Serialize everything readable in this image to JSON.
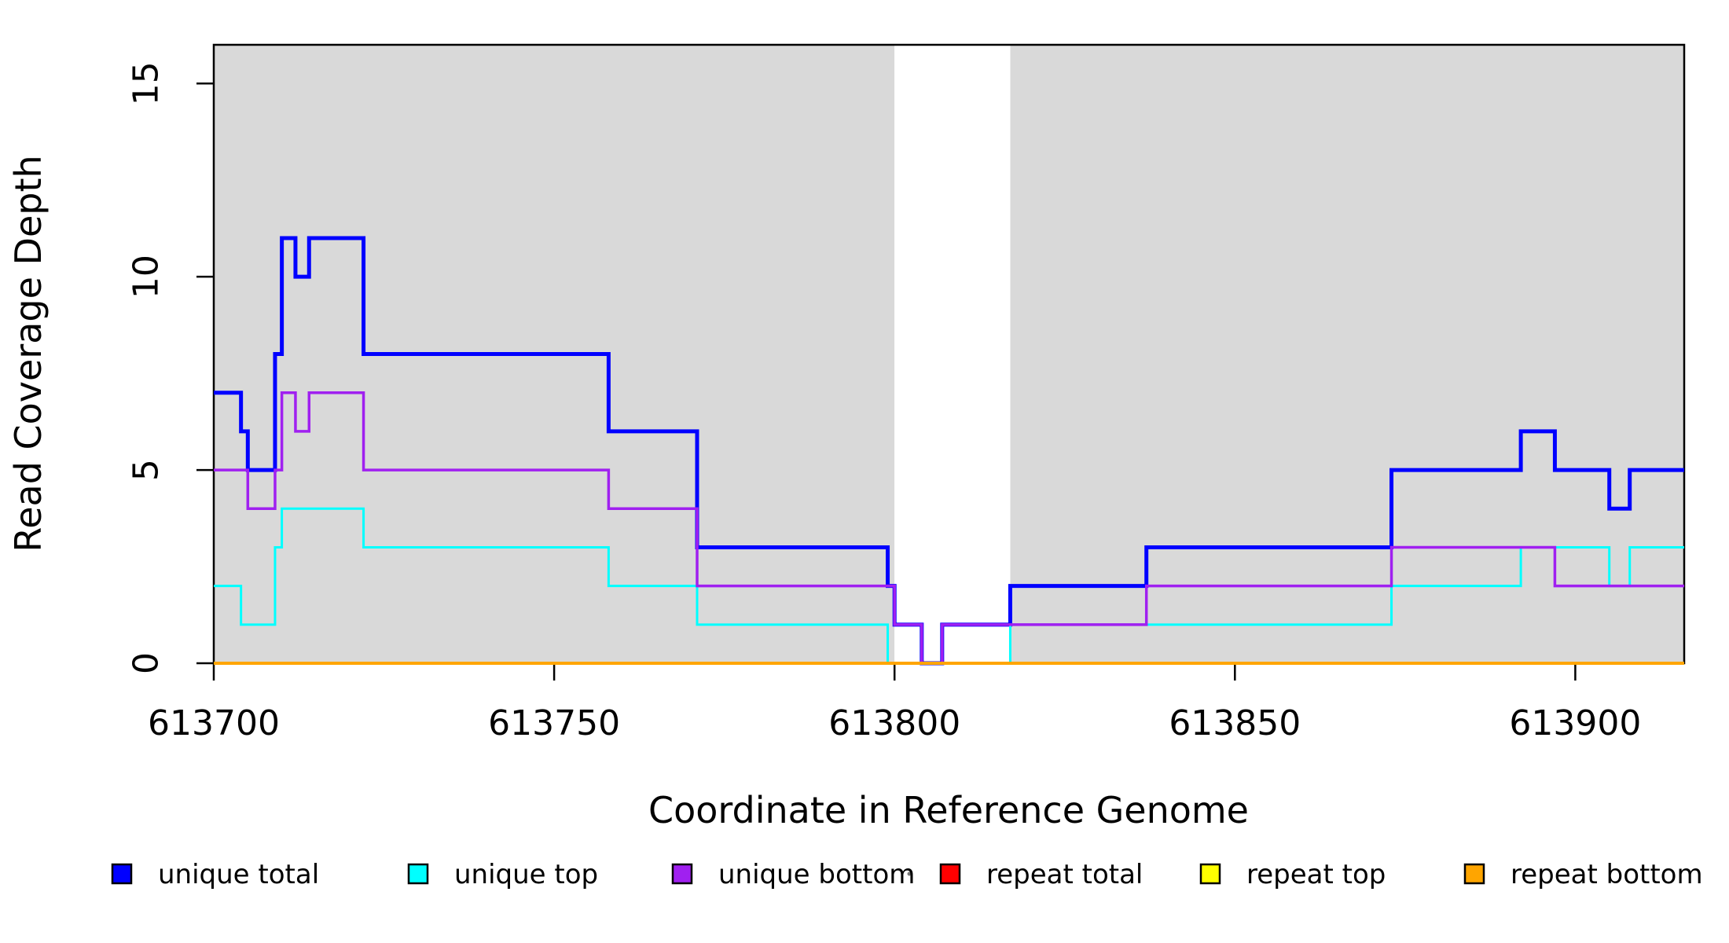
{
  "chart_data": {
    "type": "step-line",
    "title": "",
    "xlabel": "Coordinate in Reference Genome",
    "ylabel": "Read Coverage Depth",
    "xlim": [
      613700,
      613916
    ],
    "ylim": [
      0,
      16
    ],
    "x_ticks": [
      613700,
      613750,
      613800,
      613850,
      613900
    ],
    "x_tick_labels": [
      "613700",
      "613750",
      "613800",
      "613850",
      "613900"
    ],
    "y_ticks": [
      0,
      5,
      10,
      15
    ],
    "y_tick_labels": [
      "0",
      "5",
      "10",
      "15"
    ],
    "grid": false,
    "legend_position": "bottom",
    "panel": {
      "bg_color": "#D9D9D9",
      "shaded_x_ranges": [
        [
          613700,
          613800
        ],
        [
          613817,
          613916
        ]
      ],
      "gap_x_range": [
        613800,
        613817
      ],
      "border_color": "#000000",
      "baseline_color": "#FFA500"
    },
    "series": [
      {
        "name": "unique total",
        "color": "#0000FF",
        "line_width": 5,
        "points": [
          [
            613700,
            7
          ],
          [
            613704,
            6
          ],
          [
            613705,
            5
          ],
          [
            613709,
            8
          ],
          [
            613710,
            11
          ],
          [
            613712,
            10
          ],
          [
            613714,
            11
          ],
          [
            613722,
            8
          ],
          [
            613758,
            6
          ],
          [
            613771,
            3
          ],
          [
            613799,
            2
          ],
          [
            613800,
            1
          ],
          [
            613804,
            0
          ],
          [
            613807,
            1
          ],
          [
            613817,
            2
          ],
          [
            613837,
            3
          ],
          [
            613873,
            5
          ],
          [
            613892,
            6
          ],
          [
            613897,
            5
          ],
          [
            613905,
            4
          ],
          [
            613908,
            5
          ],
          [
            613916,
            5
          ]
        ]
      },
      {
        "name": "unique top",
        "color": "#00FFFF",
        "line_width": 3,
        "points": [
          [
            613700,
            2
          ],
          [
            613704,
            1
          ],
          [
            613709,
            3
          ],
          [
            613710,
            4
          ],
          [
            613722,
            3
          ],
          [
            613758,
            2
          ],
          [
            613771,
            1
          ],
          [
            613799,
            0
          ],
          [
            613817,
            1
          ],
          [
            613873,
            2
          ],
          [
            613892,
            3
          ],
          [
            613905,
            2
          ],
          [
            613908,
            3
          ],
          [
            613916,
            3
          ]
        ]
      },
      {
        "name": "unique bottom",
        "color": "#A020F0",
        "line_width": 3.5,
        "points": [
          [
            613700,
            5
          ],
          [
            613705,
            4
          ],
          [
            613709,
            5
          ],
          [
            613710,
            7
          ],
          [
            613712,
            6
          ],
          [
            613714,
            7
          ],
          [
            613722,
            5
          ],
          [
            613758,
            4
          ],
          [
            613771,
            2
          ],
          [
            613800,
            1
          ],
          [
            613804,
            0
          ],
          [
            613807,
            1
          ],
          [
            613837,
            2
          ],
          [
            613873,
            3
          ],
          [
            613897,
            2
          ],
          [
            613916,
            2
          ]
        ]
      },
      {
        "name": "repeat total",
        "color": "#FF0000",
        "line_width": 3,
        "points": [
          [
            613700,
            0
          ],
          [
            613916,
            0
          ]
        ]
      },
      {
        "name": "repeat top",
        "color": "#FFFF00",
        "line_width": 3,
        "points": [
          [
            613700,
            0
          ],
          [
            613916,
            0
          ]
        ]
      },
      {
        "name": "repeat bottom",
        "color": "#FFA500",
        "line_width": 4,
        "points": [
          [
            613700,
            0
          ],
          [
            613916,
            0
          ]
        ]
      }
    ],
    "legend": {
      "items": [
        {
          "label": "unique total",
          "color": "#0000FF"
        },
        {
          "label": "unique top",
          "color": "#00FFFF"
        },
        {
          "label": "unique bottom",
          "color": "#A020F0"
        },
        {
          "label": "repeat total",
          "color": "#FF0000"
        },
        {
          "label": "repeat top",
          "color": "#FFFF00"
        },
        {
          "label": "repeat bottom",
          "color": "#FFA500"
        }
      ]
    }
  }
}
